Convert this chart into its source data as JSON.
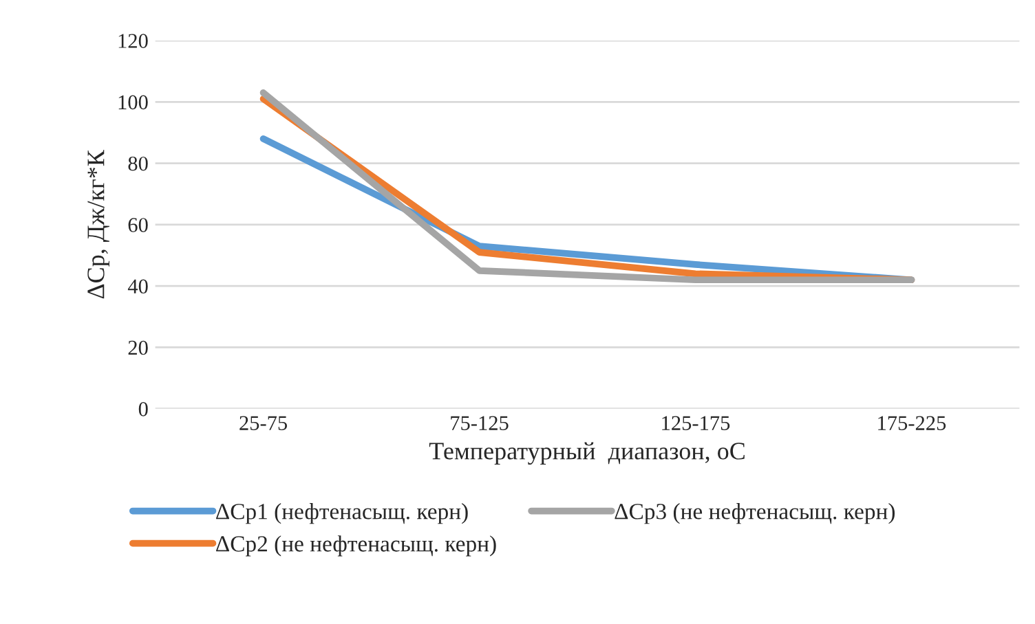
{
  "chart_data": {
    "type": "line",
    "xlabel": "Температурный  диапазон, оС",
    "ylabel": "ΔCp, Дж/кг*К",
    "categories": [
      "25-75",
      "75-125",
      "125-175",
      "175-225"
    ],
    "series": [
      {
        "name": "ΔCp1 (нефтенасыщ. керн)",
        "color": "#5b9bd5",
        "values": [
          88,
          53,
          47,
          42
        ]
      },
      {
        "name": "ΔCp2 (не нефтенасыщ. керн)",
        "color": "#ed7d31",
        "values": [
          101,
          51,
          44,
          42
        ]
      },
      {
        "name": "ΔCp3 (не нефтенасыщ. керн)",
        "color": "#a5a5a5",
        "values": [
          103,
          45,
          42,
          42
        ]
      }
    ],
    "ylim": [
      0,
      120
    ],
    "yticks": [
      0,
      20,
      40,
      60,
      80,
      100,
      120
    ],
    "grid": "y",
    "legend": "bottom",
    "marker": "none",
    "line_style": "solid"
  }
}
